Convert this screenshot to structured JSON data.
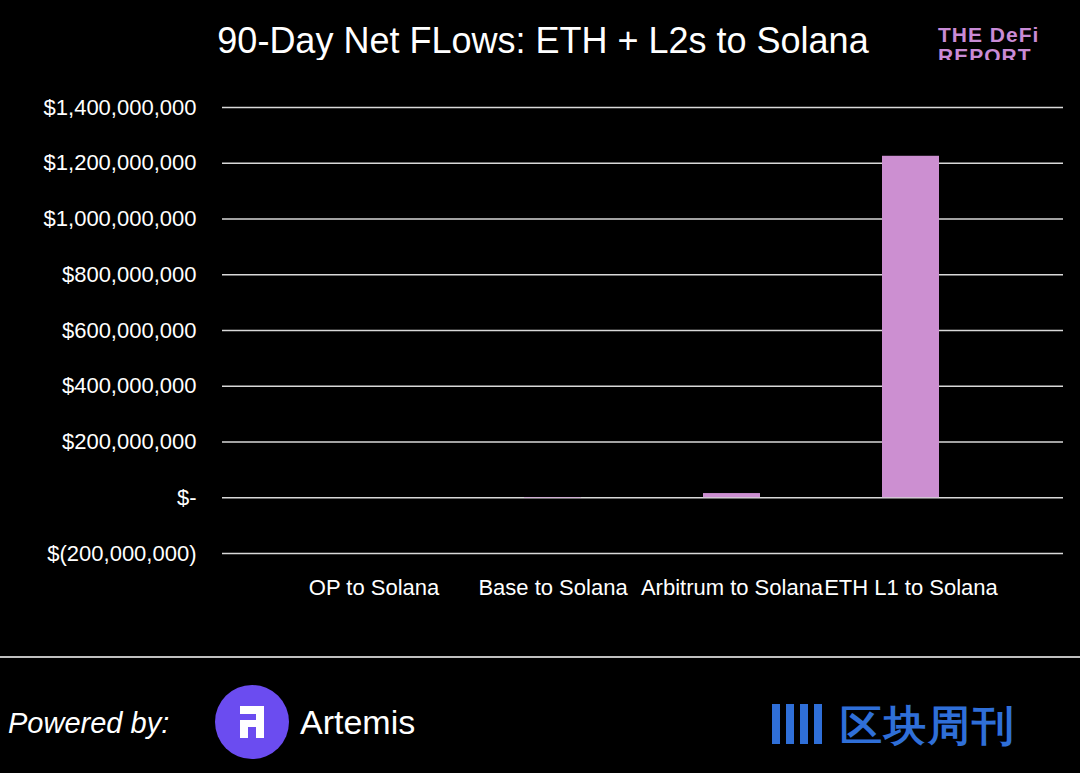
{
  "chart_data": {
    "type": "bar",
    "title": "90-Day Net FLows: ETH + L2s to Solana",
    "categories": [
      "OP to Solana",
      "Base to Solana",
      "Arbitrum to Solana",
      "ETH L1 to Solana"
    ],
    "values": [
      0,
      -2000000,
      15000000,
      1225000000
    ],
    "color": "#cc8fd1",
    "ylim": [
      -200000000,
      1400000000
    ],
    "yticks": [
      {
        "value": -200000000,
        "label": "$(200,000,000)"
      },
      {
        "value": 0,
        "label": "$-"
      },
      {
        "value": 200000000,
        "label": "$200,000,000"
      },
      {
        "value": 400000000,
        "label": "$400,000,000"
      },
      {
        "value": 600000000,
        "label": "$600,000,000"
      },
      {
        "value": 800000000,
        "label": "$800,000,000"
      },
      {
        "value": 1000000000,
        "label": "$1,000,000,000"
      },
      {
        "value": 1200000000,
        "label": "$1,200,000,000"
      },
      {
        "value": 1400000000,
        "label": "$1,400,000,000"
      }
    ],
    "grid": true,
    "annotations": [
      "THE DeFi",
      "REPORT",
      "Powered by:",
      "Artemis",
      "区块周刊"
    ]
  }
}
